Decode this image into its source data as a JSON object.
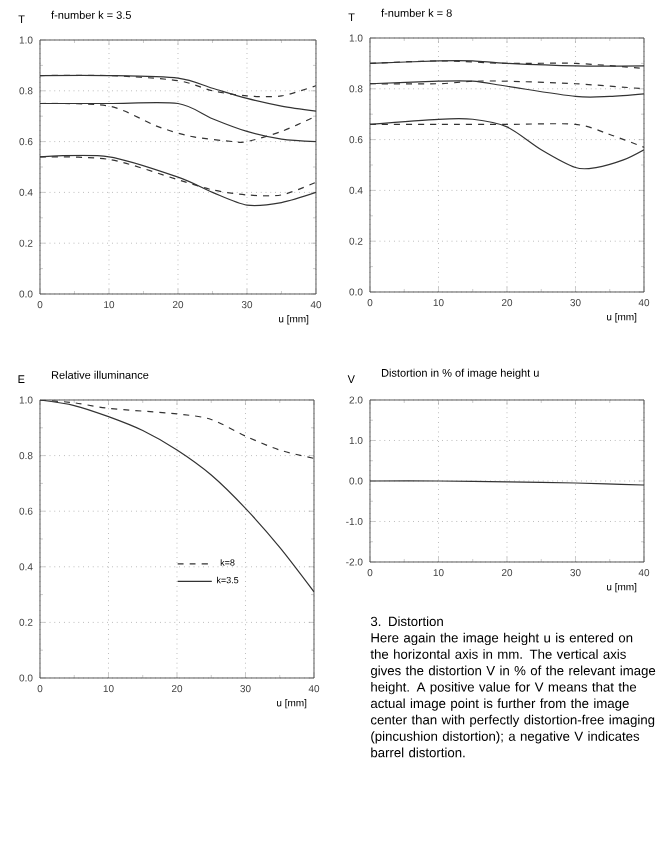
{
  "chart_data": [
    {
      "type": "line",
      "title": "f-number k = 3.5",
      "ylabel": "T",
      "xlabel": "u [mm]",
      "xlim": [
        0,
        40
      ],
      "ylim": [
        0,
        1
      ],
      "xticks": [
        0,
        10,
        20,
        30,
        40
      ],
      "yticks": [
        {
          "value": 0,
          "label": "0.0"
        },
        {
          "value": 0.2,
          "label": "0.2"
        },
        {
          "value": 0.4,
          "label": "0.4"
        },
        {
          "value": 0.6,
          "label": "0.6"
        },
        {
          "value": 0.8,
          "label": "0.8"
        },
        {
          "value": 1,
          "label": "1.0"
        }
      ],
      "grid": true,
      "series": [
        {
          "color": "#333333",
          "line_style": "solid",
          "x": [
            0,
            10,
            20,
            25,
            30,
            35,
            40
          ],
          "values": [
            0.86,
            0.86,
            0.85,
            0.81,
            0.77,
            0.74,
            0.72
          ]
        },
        {
          "color": "#333333",
          "line_style": "dashed",
          "x": [
            0,
            10,
            20,
            25,
            30,
            35,
            40
          ],
          "values": [
            0.86,
            0.86,
            0.84,
            0.8,
            0.78,
            0.78,
            0.82
          ]
        },
        {
          "color": "#333333",
          "line_style": "solid",
          "x": [
            0,
            10,
            20,
            25,
            30,
            35,
            40
          ],
          "values": [
            0.75,
            0.75,
            0.75,
            0.69,
            0.64,
            0.61,
            0.6
          ]
        },
        {
          "color": "#333333",
          "line_style": "dashed",
          "x": [
            0,
            10,
            17,
            22,
            28,
            30,
            35,
            40
          ],
          "values": [
            0.75,
            0.74,
            0.66,
            0.62,
            0.6,
            0.6,
            0.64,
            0.7
          ]
        },
        {
          "color": "#333333",
          "line_style": "solid",
          "x": [
            0,
            10,
            20,
            25,
            30,
            35,
            40
          ],
          "values": [
            0.54,
            0.54,
            0.46,
            0.4,
            0.35,
            0.36,
            0.4
          ]
        },
        {
          "color": "#333333",
          "line_style": "dashed",
          "x": [
            0,
            10,
            20,
            25,
            30,
            35,
            40
          ],
          "values": [
            0.54,
            0.53,
            0.45,
            0.41,
            0.39,
            0.39,
            0.44
          ]
        }
      ]
    },
    {
      "type": "line",
      "title": "f-number k = 8",
      "ylabel": "T",
      "xlabel": "u [mm]",
      "xlim": [
        0,
        40
      ],
      "ylim": [
        0,
        1
      ],
      "xticks": [
        0,
        10,
        20,
        30,
        40
      ],
      "yticks": [
        {
          "value": 0,
          "label": "0.0"
        },
        {
          "value": 0.2,
          "label": "0.2"
        },
        {
          "value": 0.4,
          "label": "0.4"
        },
        {
          "value": 0.6,
          "label": "0.6"
        },
        {
          "value": 0.8,
          "label": "0.8"
        },
        {
          "value": 1,
          "label": "1.0"
        }
      ],
      "grid": true,
      "series": [
        {
          "color": "#333333",
          "line_style": "solid",
          "x": [
            0,
            10,
            15,
            20,
            30,
            40
          ],
          "values": [
            0.9,
            0.91,
            0.91,
            0.9,
            0.89,
            0.89
          ]
        },
        {
          "color": "#333333",
          "line_style": "dashed",
          "x": [
            0,
            10,
            20,
            30,
            40
          ],
          "values": [
            0.9,
            0.91,
            0.9,
            0.9,
            0.88
          ]
        },
        {
          "color": "#333333",
          "line_style": "solid",
          "x": [
            0,
            10,
            15,
            20,
            30,
            35,
            40
          ],
          "values": [
            0.82,
            0.83,
            0.83,
            0.81,
            0.77,
            0.77,
            0.78
          ]
        },
        {
          "color": "#333333",
          "line_style": "dashed",
          "x": [
            0,
            10,
            15,
            20,
            30,
            40
          ],
          "values": [
            0.82,
            0.82,
            0.83,
            0.83,
            0.82,
            0.8
          ]
        },
        {
          "color": "#333333",
          "line_style": "solid",
          "x": [
            0,
            10,
            15,
            20,
            25,
            30,
            33,
            37,
            40
          ],
          "values": [
            0.66,
            0.68,
            0.68,
            0.65,
            0.56,
            0.49,
            0.49,
            0.52,
            0.56
          ]
        },
        {
          "color": "#333333",
          "line_style": "dashed",
          "x": [
            0,
            10,
            20,
            30,
            35,
            40
          ],
          "values": [
            0.66,
            0.66,
            0.66,
            0.66,
            0.62,
            0.57
          ]
        }
      ]
    },
    {
      "type": "line",
      "title": "Relative illuminance",
      "ylabel": "E",
      "xlabel": "u [mm]",
      "xlim": [
        0,
        40
      ],
      "ylim": [
        0,
        1
      ],
      "xticks": [
        0,
        10,
        20,
        30,
        40
      ],
      "yticks": [
        {
          "value": 0,
          "label": "0.0"
        },
        {
          "value": 0.2,
          "label": "0.2"
        },
        {
          "value": 0.4,
          "label": "0.4"
        },
        {
          "value": 0.6,
          "label": "0.6"
        },
        {
          "value": 0.8,
          "label": "0.8"
        },
        {
          "value": 1,
          "label": "1.0"
        }
      ],
      "grid": true,
      "legend": "bottom",
      "series": [
        {
          "name": "k=8",
          "color": "#333333",
          "line_style": "dashed",
          "x": [
            0,
            5,
            10,
            20,
            25,
            30,
            35,
            40
          ],
          "values": [
            1.0,
            0.99,
            0.97,
            0.95,
            0.93,
            0.87,
            0.82,
            0.79
          ]
        },
        {
          "name": "k=3.5",
          "color": "#333333",
          "line_style": "solid",
          "x": [
            0,
            5,
            10,
            15,
            20,
            25,
            30,
            35,
            40
          ],
          "values": [
            1.0,
            0.98,
            0.94,
            0.89,
            0.82,
            0.73,
            0.61,
            0.47,
            0.31
          ]
        }
      ]
    },
    {
      "type": "line",
      "title": "Distortion in % of image height u",
      "ylabel": "V",
      "xlabel": "u [mm]",
      "xlim": [
        0,
        40
      ],
      "ylim": [
        -2,
        2
      ],
      "xticks": [
        0,
        10,
        20,
        30,
        40
      ],
      "yticks": [
        {
          "value": -2,
          "label": "-2.0"
        },
        {
          "value": -1,
          "label": "-1.0"
        },
        {
          "value": 0,
          "label": "0.0"
        },
        {
          "value": 1,
          "label": "1.0"
        },
        {
          "value": 2,
          "label": "2.0"
        }
      ],
      "grid": true,
      "series": [
        {
          "color": "#333333",
          "line_style": "solid",
          "x": [
            0,
            10,
            20,
            30,
            40
          ],
          "values": [
            0,
            0,
            -0.02,
            -0.05,
            -0.1
          ]
        }
      ]
    },
    {
      "type": "other",
      "title": "3. Distortion",
      "annotations": [
        "Here again the image height u is entered on the horizontal axis in mm. The vertical axis gives the distortion V in % of the relevant image height. A positive value for V means that the actual image point is further from the image center than with perfectly distortion-free imaging (pincushion distortion); a negative V indicates barrel distortion."
      ]
    }
  ]
}
